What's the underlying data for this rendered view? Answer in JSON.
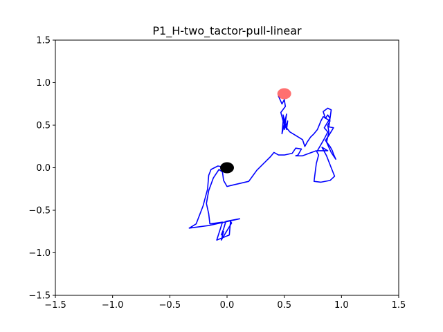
{
  "chart_data": {
    "type": "line",
    "title": "P1_H-two_tactor-pull-linear",
    "xlabel": "",
    "ylabel": "",
    "xlim": [
      -1.5,
      1.5
    ],
    "ylim": [
      -1.5,
      1.5
    ],
    "xticks": [
      -1.5,
      -1.0,
      -0.5,
      0.0,
      0.5,
      1.0,
      1.5
    ],
    "yticks": [
      -1.5,
      -1.0,
      -0.5,
      0.0,
      0.5,
      1.0,
      1.5
    ],
    "xtick_labels": [
      "−1.5",
      "−1.0",
      "−0.5",
      "0.0",
      "0.5",
      "1.0",
      "1.5"
    ],
    "ytick_labels": [
      "−1.5",
      "−1.0",
      "−0.5",
      "0.0",
      "0.5",
      "1.0",
      "1.5"
    ],
    "grid": false,
    "colors": {
      "path": "#0000ff",
      "start": "#000000",
      "target": "#ff4040"
    },
    "markers": [
      {
        "name": "start",
        "x": 0.0,
        "y": 0.0,
        "color": "#000000"
      },
      {
        "name": "target",
        "x": 0.5,
        "y": 0.87,
        "color": "#ff4040"
      }
    ],
    "series": [
      {
        "x": [
          0.0,
          -0.08,
          -0.14,
          -0.16,
          -0.17,
          -0.21,
          -0.27,
          -0.33,
          -0.16,
          0.11,
          -0.01,
          -0.03,
          -0.05,
          -0.03,
          -0.05,
          0.04,
          0.03,
          0.02,
          -0.09,
          -0.04,
          -0.15,
          -0.16,
          -0.18,
          -0.16,
          -0.12,
          -0.07,
          -0.04,
          -0.03,
          0.0,
          0.03,
          0.19,
          0.26,
          0.32,
          0.38,
          0.41,
          0.45,
          0.5,
          0.57,
          0.6,
          0.65,
          0.62,
          0.6,
          0.66,
          0.7,
          0.78,
          0.8,
          0.78,
          0.76,
          0.82,
          0.9,
          0.94,
          0.91,
          0.87,
          0.83,
          0.88,
          0.79,
          0.85,
          0.88,
          0.85,
          0.9,
          0.88,
          0.86,
          0.84,
          0.88,
          0.91,
          0.89,
          0.93,
          0.89,
          0.86,
          0.9,
          0.92,
          0.93,
          0.95,
          0.91,
          0.87,
          0.89,
          0.88,
          0.9,
          0.84,
          0.82,
          0.79,
          0.76,
          0.73,
          0.7,
          0.68,
          0.66,
          0.6,
          0.55,
          0.5,
          0.49,
          0.5,
          0.52,
          0.53,
          0.5,
          0.52,
          0.48,
          0.49,
          0.47,
          0.51,
          0.5,
          0.48,
          0.45
        ],
        "y": [
          0.0,
          0.02,
          -0.02,
          -0.09,
          -0.25,
          -0.45,
          -0.66,
          -0.71,
          -0.68,
          -0.6,
          -0.63,
          -0.72,
          -0.79,
          -0.75,
          -0.85,
          -0.65,
          -0.63,
          -0.79,
          -0.85,
          -0.64,
          -0.66,
          -0.54,
          -0.42,
          -0.27,
          -0.12,
          -0.02,
          -0.05,
          -0.15,
          -0.22,
          -0.21,
          -0.16,
          -0.03,
          0.05,
          0.13,
          0.18,
          0.15,
          0.15,
          0.17,
          0.23,
          0.22,
          0.15,
          0.14,
          0.14,
          0.16,
          0.2,
          0.15,
          0.05,
          -0.16,
          -0.17,
          -0.15,
          -0.1,
          0.0,
          0.14,
          0.24,
          0.2,
          0.2,
          0.34,
          0.42,
          0.47,
          0.58,
          0.62,
          0.58,
          0.66,
          0.7,
          0.68,
          0.48,
          0.47,
          0.38,
          0.32,
          0.25,
          0.2,
          0.16,
          0.1,
          0.18,
          0.3,
          0.42,
          0.5,
          0.55,
          0.6,
          0.55,
          0.45,
          0.4,
          0.36,
          0.3,
          0.25,
          0.33,
          0.38,
          0.42,
          0.5,
          0.62,
          0.57,
          0.45,
          0.55,
          0.45,
          0.63,
          0.4,
          0.55,
          0.65,
          0.72,
          0.8,
          0.75,
          0.84
        ]
      }
    ]
  }
}
